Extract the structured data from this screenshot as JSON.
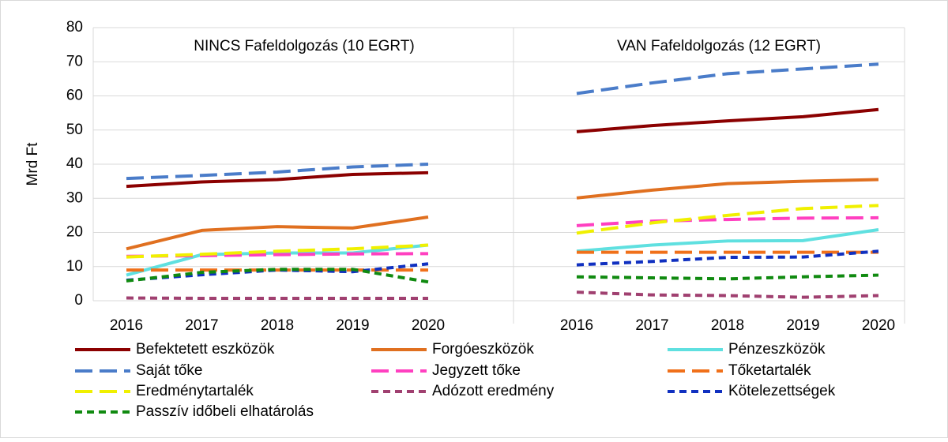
{
  "chart_data": {
    "type": "line",
    "ylabel": "Mrd Ft",
    "ylim": [
      0,
      80
    ],
    "yticks": [
      0,
      10,
      20,
      30,
      40,
      50,
      60,
      70,
      80
    ],
    "grid": true,
    "panels": [
      {
        "title": "NINCS Fafeldolgozás (10 EGRT)",
        "categories": [
          "2016",
          "2017",
          "2018",
          "2019",
          "2020"
        ]
      },
      {
        "title": "VAN Fafeldolgozás (12 EGRT)",
        "categories": [
          "2016",
          "2017",
          "2018",
          "2019",
          "2020"
        ]
      }
    ],
    "series": [
      {
        "name": "Befektetett eszközök",
        "color": "#8b0000",
        "dash": "solid",
        "values": [
          [
            33.5,
            34.8,
            35.5,
            37,
            37.5
          ],
          [
            49.5,
            51.3,
            52.7,
            53.9,
            56
          ]
        ]
      },
      {
        "name": "Forgóeszközök",
        "color": "#e07020",
        "dash": "solid",
        "values": [
          [
            15.2,
            20.6,
            21.7,
            21.3,
            24.5
          ],
          [
            30.1,
            32.4,
            34.3,
            35,
            35.5
          ]
        ]
      },
      {
        "name": "Pénzeszközök",
        "color": "#5fe0e0",
        "dash": "solid",
        "values": [
          [
            7.5,
            13.5,
            14,
            14,
            16.3
          ],
          [
            14.5,
            16.3,
            17.5,
            17.6,
            20.8
          ]
        ]
      },
      {
        "name": "Saját tőke",
        "color": "#4a7cc9",
        "dash": "long",
        "values": [
          [
            35.8,
            36.7,
            37.7,
            39.2,
            40
          ],
          [
            60.7,
            63.8,
            66.5,
            67.9,
            69.3
          ]
        ]
      },
      {
        "name": "Jegyzett tőke",
        "color": "#ff40c0",
        "dash": "long",
        "values": [
          [
            13,
            13.2,
            13.5,
            13.7,
            13.8
          ],
          [
            22,
            23.3,
            23.8,
            24.2,
            24.3
          ]
        ]
      },
      {
        "name": "Tőketartalék",
        "color": "#f0701a",
        "dash": "long",
        "values": [
          [
            9,
            9,
            9,
            9,
            9
          ],
          [
            14.2,
            14.2,
            14.2,
            14.2,
            14.2
          ]
        ]
      },
      {
        "name": "Eredménytartalék",
        "color": "#f0f000",
        "dash": "long",
        "values": [
          [
            12.8,
            13.6,
            14.5,
            15.2,
            16.3
          ],
          [
            19.8,
            22.8,
            25,
            27,
            27.9
          ]
        ]
      },
      {
        "name": "Adózott eredmény",
        "color": "#a04070",
        "dash": "short",
        "values": [
          [
            0.8,
            0.7,
            0.7,
            0.7,
            0.7
          ],
          [
            2.5,
            1.7,
            1.5,
            1,
            1.5
          ]
        ]
      },
      {
        "name": "Kötelezettségek",
        "color": "#1030c0",
        "dash": "short",
        "values": [
          [
            6,
            7.6,
            9,
            8.5,
            10.8
          ],
          [
            10.5,
            11.5,
            12.7,
            12.8,
            14.5
          ]
        ]
      },
      {
        "name": "Passzív időbeli elhatárolás",
        "color": "#108a10",
        "dash": "short",
        "values": [
          [
            5.8,
            8.3,
            9.2,
            9.2,
            5.5
          ],
          [
            7,
            6.7,
            6.4,
            7,
            7.5
          ]
        ]
      }
    ]
  }
}
